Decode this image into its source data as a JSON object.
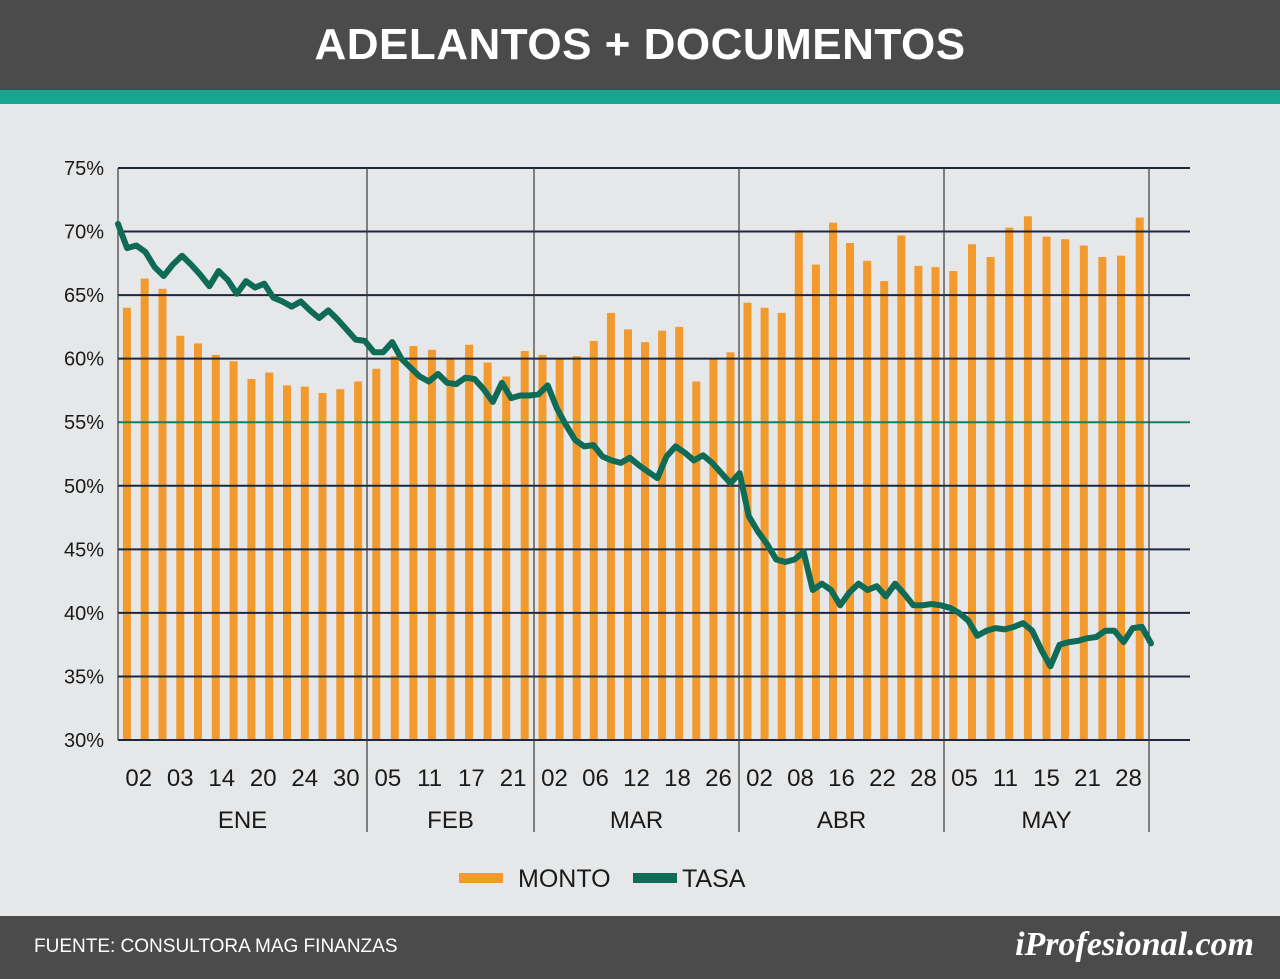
{
  "header": {
    "title": "ADELANTOS + DOCUMENTOS"
  },
  "footer": {
    "source": "FUENTE: CONSULTORA MAG FINANZAS",
    "brand": "iProfesional.com"
  },
  "colors": {
    "header_bg": "#4b4b4b",
    "accent": "#16a58f",
    "background": "#e6e7e8",
    "bar": "#f29a2e",
    "line": "#0f6b56",
    "grid": "#1c2740",
    "reference_line": "#16805e"
  },
  "chart_data": {
    "type": "bar",
    "title": "ADELANTOS + DOCUMENTOS",
    "ylim": [
      30,
      75
    ],
    "yticks": [
      "30%",
      "35%",
      "40%",
      "45%",
      "50%",
      "55%",
      "60%",
      "65%",
      "70%",
      "75%"
    ],
    "grid": true,
    "reference_line_value": 55,
    "legend_position": "bottom-center",
    "legend": [
      {
        "name": "MONTO",
        "kind": "bar"
      },
      {
        "name": "TASA",
        "kind": "line"
      }
    ],
    "months": [
      {
        "label": "ENE",
        "day_labels": [
          "02",
          "03",
          "14",
          "20",
          "24",
          "30"
        ]
      },
      {
        "label": "FEB",
        "day_labels": [
          "05",
          "11",
          "17",
          "21"
        ]
      },
      {
        "label": "MAR",
        "day_labels": [
          "02",
          "06",
          "12",
          "18",
          "26"
        ]
      },
      {
        "label": "ABR",
        "day_labels": [
          "02",
          "08",
          "16",
          "22",
          "28"
        ]
      },
      {
        "label": "MAY",
        "day_labels": [
          "05",
          "11",
          "15",
          "21",
          "28"
        ]
      }
    ],
    "series": [
      {
        "name": "MONTO",
        "kind": "bar",
        "values": [
          [
            64.0,
            66.3,
            65.5,
            61.8,
            61.2,
            60.3,
            59.8,
            58.4,
            58.9,
            57.9,
            57.8,
            57.3,
            57.6,
            58.2
          ],
          [
            59.2,
            60.2,
            61.0,
            60.7,
            60.0,
            61.1,
            59.7,
            58.6,
            60.6
          ],
          [
            60.3,
            60.0,
            60.2,
            61.4,
            63.6,
            62.3,
            61.3,
            62.2,
            62.5,
            58.2,
            60.0,
            60.5
          ],
          [
            64.4,
            64.0,
            63.6,
            70.1,
            67.4,
            70.7,
            69.1,
            67.7,
            66.1,
            69.7,
            67.3,
            67.2
          ],
          [
            66.9,
            69.0,
            68.0,
            70.3,
            71.2,
            69.6,
            69.4,
            68.9,
            68.0,
            68.1,
            71.1
          ]
        ]
      },
      {
        "name": "TASA",
        "kind": "line",
        "values": [
          70.6,
          68.7,
          68.9,
          68.4,
          67.2,
          66.5,
          67.4,
          68.1,
          67.4,
          66.6,
          65.7,
          66.9,
          66.2,
          65.1,
          66.1,
          65.6,
          65.9,
          64.8,
          64.5,
          64.1,
          64.5,
          63.8,
          63.2,
          63.8,
          63.1,
          62.3,
          61.5,
          61.4,
          60.5,
          60.5,
          61.3,
          60.0,
          59.3,
          58.6,
          58.2,
          58.8,
          58.1,
          58.0,
          58.5,
          58.4,
          57.6,
          56.6,
          58.1,
          56.9,
          57.1,
          57.1,
          57.2,
          57.9,
          56.1,
          54.8,
          53.6,
          53.1,
          53.2,
          52.3,
          52.0,
          51.8,
          52.2,
          51.6,
          51.1,
          50.6,
          52.3,
          53.1,
          52.6,
          52.0,
          52.4,
          51.8,
          51.0,
          50.2,
          51.0,
          47.6,
          46.4,
          45.4,
          44.2,
          44.0,
          44.2,
          44.8,
          41.8,
          42.3,
          41.8,
          40.6,
          41.6,
          42.3,
          41.8,
          42.1,
          41.3,
          42.3,
          41.5,
          40.6,
          40.6,
          40.7,
          40.6,
          40.4,
          40.0,
          39.4,
          38.2,
          38.6,
          38.8,
          38.7,
          38.9,
          39.2,
          38.6,
          37.1,
          35.8,
          37.5,
          37.7,
          37.8,
          38.0,
          38.1,
          38.6,
          38.6,
          37.7,
          38.8,
          38.9,
          37.6
        ]
      }
    ]
  }
}
